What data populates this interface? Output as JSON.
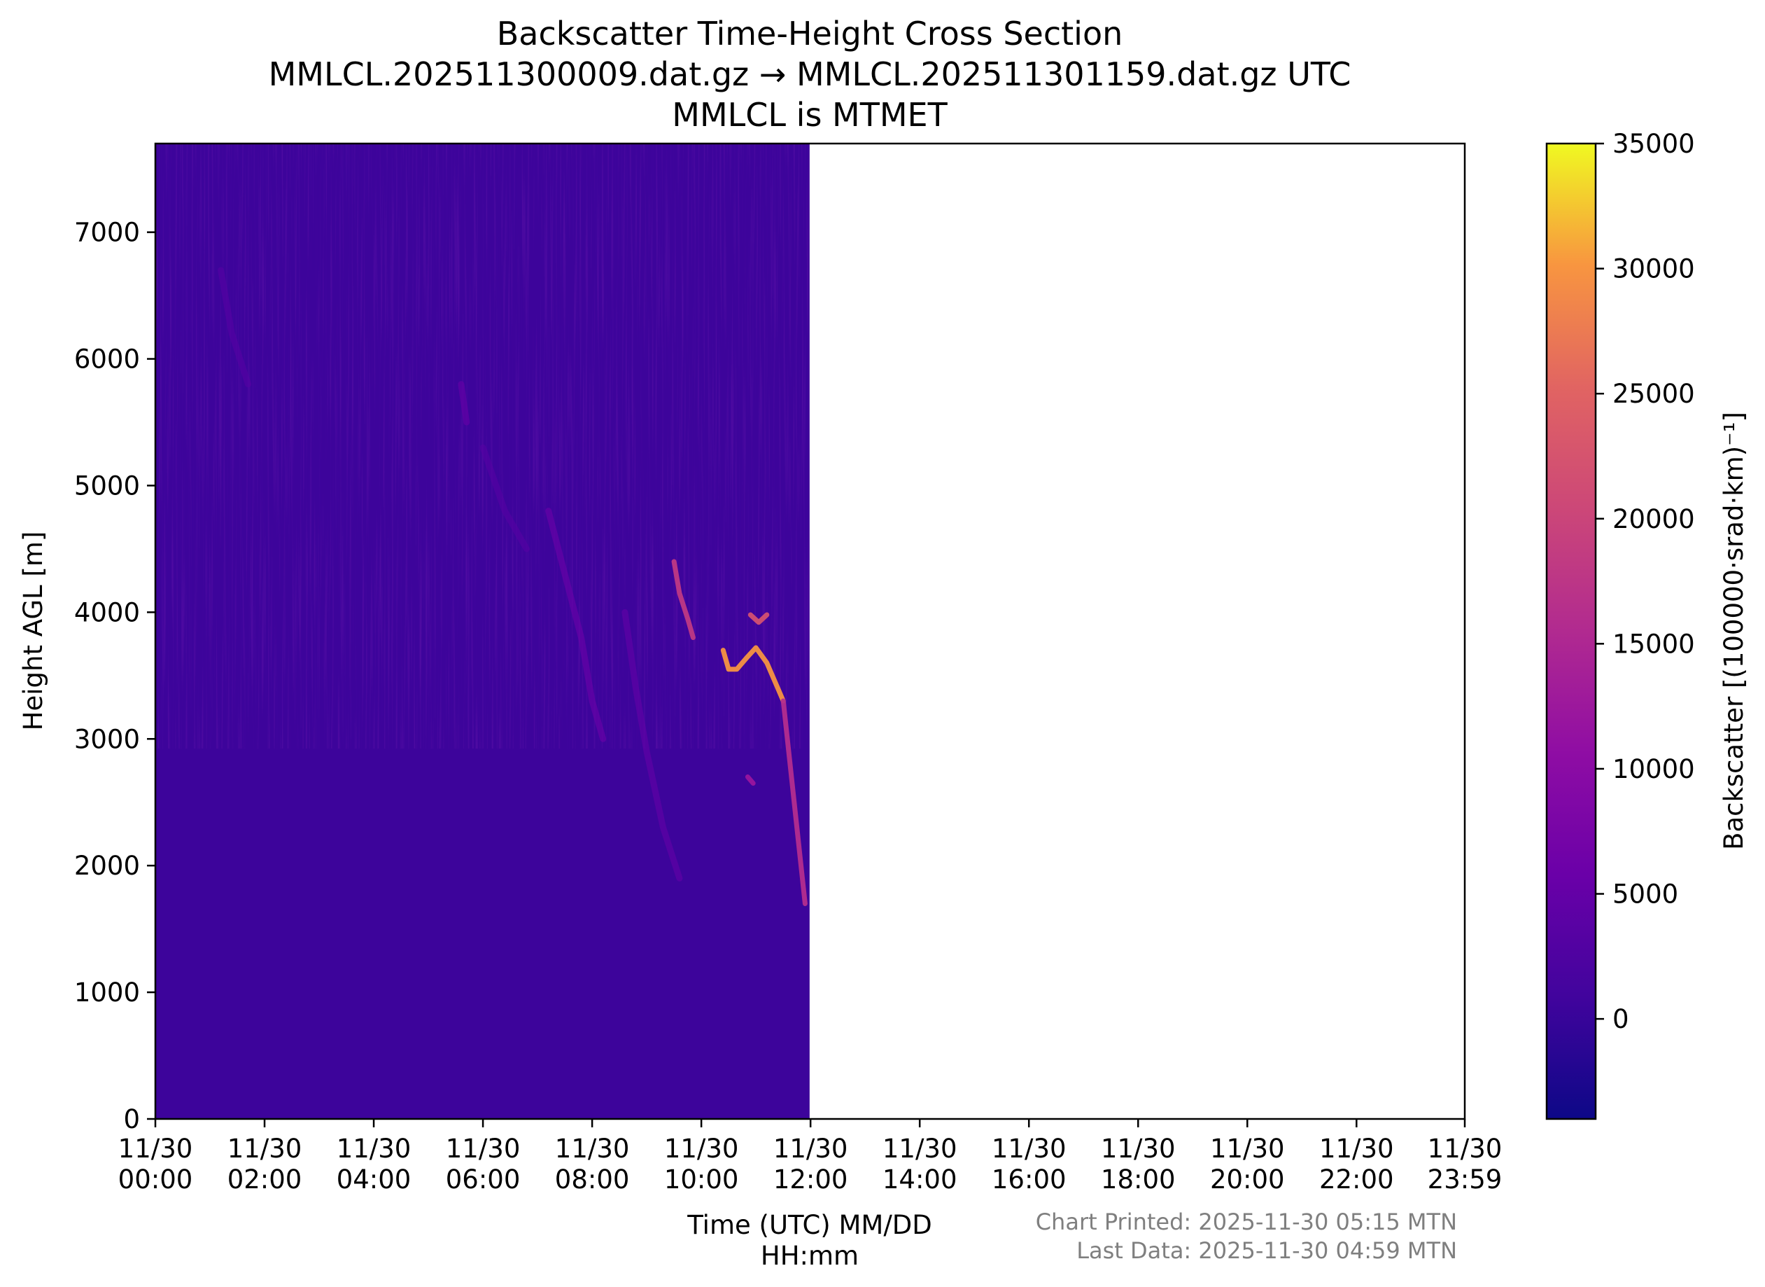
{
  "chart_data": {
    "type": "heatmap",
    "title": [
      "Backscatter Time-Height Cross Section",
      "MMLCL.202511300009.dat.gz → MMLCL.202511301159.dat.gz UTC",
      "MMLCL is MTMET"
    ],
    "xlabel": [
      "Time (UTC) MM/DD",
      "HH:mm"
    ],
    "ylabel": "Height AGL [m]",
    "x_range_hours": [
      0,
      23.983
    ],
    "ylim": [
      0,
      7700
    ],
    "y_ticks": [
      0,
      1000,
      2000,
      3000,
      4000,
      5000,
      6000,
      7000
    ],
    "x_ticks": [
      {
        "hour": 0,
        "date": "11/30",
        "time": "00:00"
      },
      {
        "hour": 2,
        "date": "11/30",
        "time": "02:00"
      },
      {
        "hour": 4,
        "date": "11/30",
        "time": "04:00"
      },
      {
        "hour": 6,
        "date": "11/30",
        "time": "06:00"
      },
      {
        "hour": 8,
        "date": "11/30",
        "time": "08:00"
      },
      {
        "hour": 10,
        "date": "11/30",
        "time": "10:00"
      },
      {
        "hour": 12,
        "date": "11/30",
        "time": "12:00"
      },
      {
        "hour": 14,
        "date": "11/30",
        "time": "14:00"
      },
      {
        "hour": 16,
        "date": "11/30",
        "time": "16:00"
      },
      {
        "hour": 18,
        "date": "11/30",
        "time": "18:00"
      },
      {
        "hour": 20,
        "date": "11/30",
        "time": "20:00"
      },
      {
        "hour": 22,
        "date": "11/30",
        "time": "22:00"
      },
      {
        "hour": 23.983,
        "date": "11/30",
        "time": "23:59"
      }
    ],
    "data_extent_hours": [
      0,
      11.983
    ],
    "background_value": 500,
    "features": [
      {
        "kind": "streak",
        "points": [
          [
            9.5,
            4400
          ],
          [
            9.6,
            4150
          ],
          [
            9.75,
            3950
          ],
          [
            9.85,
            3800
          ]
        ],
        "value": 18000
      },
      {
        "kind": "streak",
        "points": [
          [
            10.4,
            3700
          ],
          [
            10.5,
            3550
          ],
          [
            10.65,
            3550
          ],
          [
            10.85,
            3650
          ],
          [
            11.0,
            3720
          ],
          [
            11.2,
            3600
          ],
          [
            11.4,
            3400
          ],
          [
            11.5,
            3300
          ]
        ],
        "value": 30000
      },
      {
        "kind": "streak",
        "points": [
          [
            10.9,
            3980
          ],
          [
            11.05,
            3920
          ],
          [
            11.2,
            3980
          ]
        ],
        "value": 22000
      },
      {
        "kind": "streak",
        "points": [
          [
            11.5,
            3300
          ],
          [
            11.6,
            2900
          ],
          [
            11.7,
            2500
          ],
          [
            11.8,
            2100
          ],
          [
            11.9,
            1700
          ]
        ],
        "value": 16000
      },
      {
        "kind": "streak",
        "points": [
          [
            10.85,
            2700
          ],
          [
            10.95,
            2650
          ]
        ],
        "value": 12000
      },
      {
        "kind": "virga",
        "points": [
          [
            7.2,
            4800
          ],
          [
            7.5,
            4300
          ],
          [
            7.8,
            3800
          ],
          [
            8.0,
            3300
          ],
          [
            8.2,
            3000
          ]
        ],
        "value": 6000
      },
      {
        "kind": "virga",
        "points": [
          [
            8.6,
            4000
          ],
          [
            8.8,
            3400
          ],
          [
            9.0,
            2900
          ],
          [
            9.3,
            2300
          ],
          [
            9.6,
            1900
          ]
        ],
        "value": 5000
      },
      {
        "kind": "virga",
        "points": [
          [
            5.6,
            5800
          ],
          [
            5.7,
            5500
          ]
        ],
        "value": 5500
      },
      {
        "kind": "virga",
        "points": [
          [
            1.2,
            6700
          ],
          [
            1.4,
            6200
          ],
          [
            1.7,
            5800
          ]
        ],
        "value": 3500
      },
      {
        "kind": "virga",
        "points": [
          [
            6.0,
            5300
          ],
          [
            6.4,
            4800
          ],
          [
            6.8,
            4500
          ]
        ],
        "value": 3500
      }
    ],
    "colorbar": {
      "colormap": "plasma",
      "label": "Backscatter [(100000·srad·km)⁻¹]",
      "range": [
        -4000,
        35000
      ],
      "ticks": [
        0,
        5000,
        10000,
        15000,
        20000,
        25000,
        30000,
        35000
      ]
    }
  },
  "footer": {
    "printed": "Chart Printed: 2025-11-30 05:15 MTN",
    "last_data": "Last Data: 2025-11-30 04:59 MTN"
  }
}
